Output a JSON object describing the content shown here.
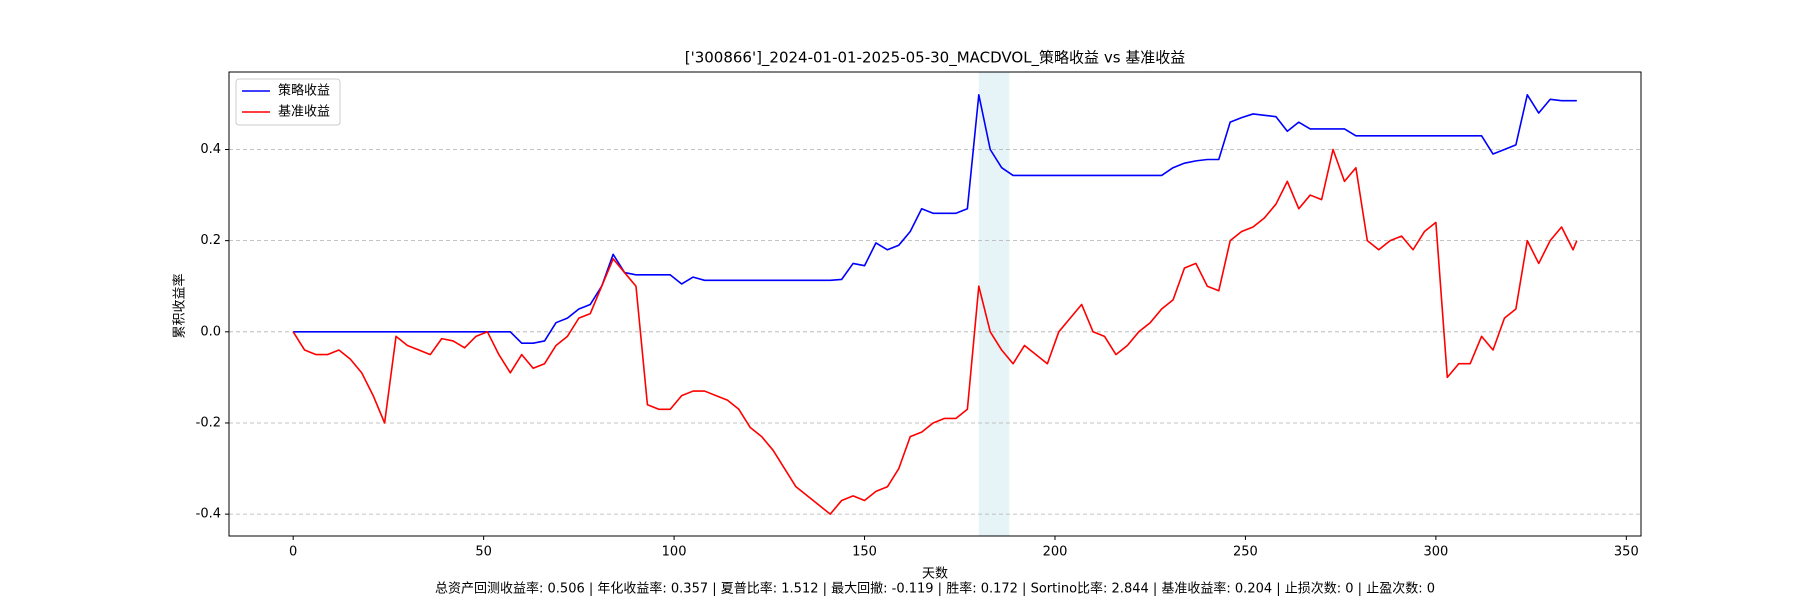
{
  "chart_data": {
    "type": "line",
    "title": "['300866']_2024-01-01-2025-05-30_MACDVOL_策略收益 vs 基准收益",
    "xlabel": "天数",
    "ylabel": "累积收益率",
    "footer": "总资产回测收益率: 0.506 | 年化收益率: 0.357 | 夏普比率: 1.512 | 最大回撤: -0.119 | 胜率: 0.172 | Sortino比率: 2.844 | 基准收益率: 0.204 | 止损次数: 0 | 止盈次数: 0",
    "x": [
      0,
      3,
      6,
      9,
      12,
      15,
      18,
      21,
      24,
      27,
      30,
      33,
      36,
      39,
      42,
      45,
      48,
      51,
      54,
      57,
      60,
      63,
      66,
      69,
      72,
      75,
      78,
      81,
      84,
      87,
      90,
      93,
      96,
      99,
      102,
      105,
      108,
      111,
      114,
      117,
      120,
      123,
      126,
      129,
      132,
      135,
      138,
      141,
      144,
      147,
      150,
      153,
      156,
      159,
      162,
      165,
      168,
      171,
      174,
      177,
      180,
      183,
      186,
      189,
      192,
      195,
      198,
      201,
      204,
      207,
      210,
      213,
      216,
      219,
      222,
      225,
      228,
      231,
      234,
      237,
      240,
      243,
      246,
      249,
      252,
      255,
      258,
      261,
      264,
      267,
      270,
      273,
      276,
      279,
      282,
      285,
      288,
      291,
      294,
      297,
      300,
      303,
      306,
      309,
      312,
      315,
      318,
      321,
      324,
      327,
      330,
      333,
      336,
      337
    ],
    "series": [
      {
        "name": "策略收益",
        "color": "#0000ff",
        "values": [
          0,
          0,
          0,
          0,
          0,
          0,
          0,
          0,
          0,
          0,
          0,
          0,
          0,
          0,
          0,
          0,
          0,
          0,
          0,
          0,
          -0.025,
          -0.025,
          -0.02,
          0.02,
          0.03,
          0.05,
          0.06,
          0.1,
          0.17,
          0.13,
          0.125,
          0.125,
          0.125,
          0.125,
          0.105,
          0.12,
          0.113,
          0.113,
          0.113,
          0.113,
          0.113,
          0.113,
          0.113,
          0.113,
          0.113,
          0.113,
          0.113,
          0.113,
          0.115,
          0.15,
          0.145,
          0.195,
          0.18,
          0.19,
          0.22,
          0.27,
          0.26,
          0.26,
          0.26,
          0.27,
          0.52,
          0.4,
          0.36,
          0.343,
          0.343,
          0.343,
          0.343,
          0.343,
          0.343,
          0.343,
          0.343,
          0.343,
          0.343,
          0.343,
          0.343,
          0.343,
          0.343,
          0.36,
          0.37,
          0.375,
          0.378,
          0.378,
          0.46,
          0.47,
          0.478,
          0.475,
          0.472,
          0.44,
          0.46,
          0.445,
          0.445,
          0.445,
          0.445,
          0.43,
          0.43,
          0.43,
          0.43,
          0.43,
          0.43,
          0.43,
          0.43,
          0.43,
          0.43,
          0.43,
          0.43,
          0.39,
          0.4,
          0.41,
          0.52,
          0.48,
          0.51,
          0.507,
          0.507,
          0.507
        ]
      },
      {
        "name": "基准收益",
        "color": "#ff0000",
        "values": [
          0,
          -0.04,
          -0.05,
          -0.05,
          -0.04,
          -0.06,
          -0.09,
          -0.14,
          -0.2,
          -0.01,
          -0.03,
          -0.04,
          -0.05,
          -0.015,
          -0.02,
          -0.035,
          -0.01,
          0,
          -0.05,
          -0.09,
          -0.05,
          -0.08,
          -0.07,
          -0.03,
          -0.01,
          0.03,
          0.04,
          0.1,
          0.16,
          0.13,
          0.1,
          -0.16,
          -0.17,
          -0.17,
          -0.14,
          -0.13,
          -0.13,
          -0.14,
          -0.15,
          -0.17,
          -0.21,
          -0.23,
          -0.26,
          -0.3,
          -0.34,
          -0.36,
          -0.38,
          -0.4,
          -0.37,
          -0.36,
          -0.37,
          -0.35,
          -0.34,
          -0.3,
          -0.23,
          -0.22,
          -0.2,
          -0.19,
          -0.19,
          -0.17,
          0.1,
          0,
          -0.04,
          -0.07,
          -0.03,
          -0.05,
          -0.07,
          0,
          0.03,
          0.06,
          0,
          -0.01,
          -0.05,
          -0.03,
          0,
          0.02,
          0.05,
          0.07,
          0.14,
          0.15,
          0.1,
          0.09,
          0.2,
          0.22,
          0.23,
          0.25,
          0.28,
          0.33,
          0.27,
          0.3,
          0.29,
          0.4,
          0.33,
          0.36,
          0.2,
          0.18,
          0.2,
          0.21,
          0.18,
          0.22,
          0.24,
          -0.1,
          -0.07,
          -0.07,
          -0.01,
          -0.04,
          0.03,
          0.05,
          0.2,
          0.15,
          0.2,
          0.23,
          0.18,
          0.2
        ]
      }
    ],
    "span": [
      180,
      188
    ],
    "span_color": "#add8e6",
    "xlim": [
      -16.85,
      353.85
    ],
    "xticks": [
      0,
      50,
      100,
      150,
      200,
      250,
      300,
      350
    ],
    "ylim": [
      -0.448,
      0.57
    ],
    "yticks": [
      -0.4,
      -0.2,
      {
        "value": 0,
        "label": "0.0"
      },
      0.2,
      0.4
    ],
    "grid": true,
    "legend": "upper left"
  }
}
